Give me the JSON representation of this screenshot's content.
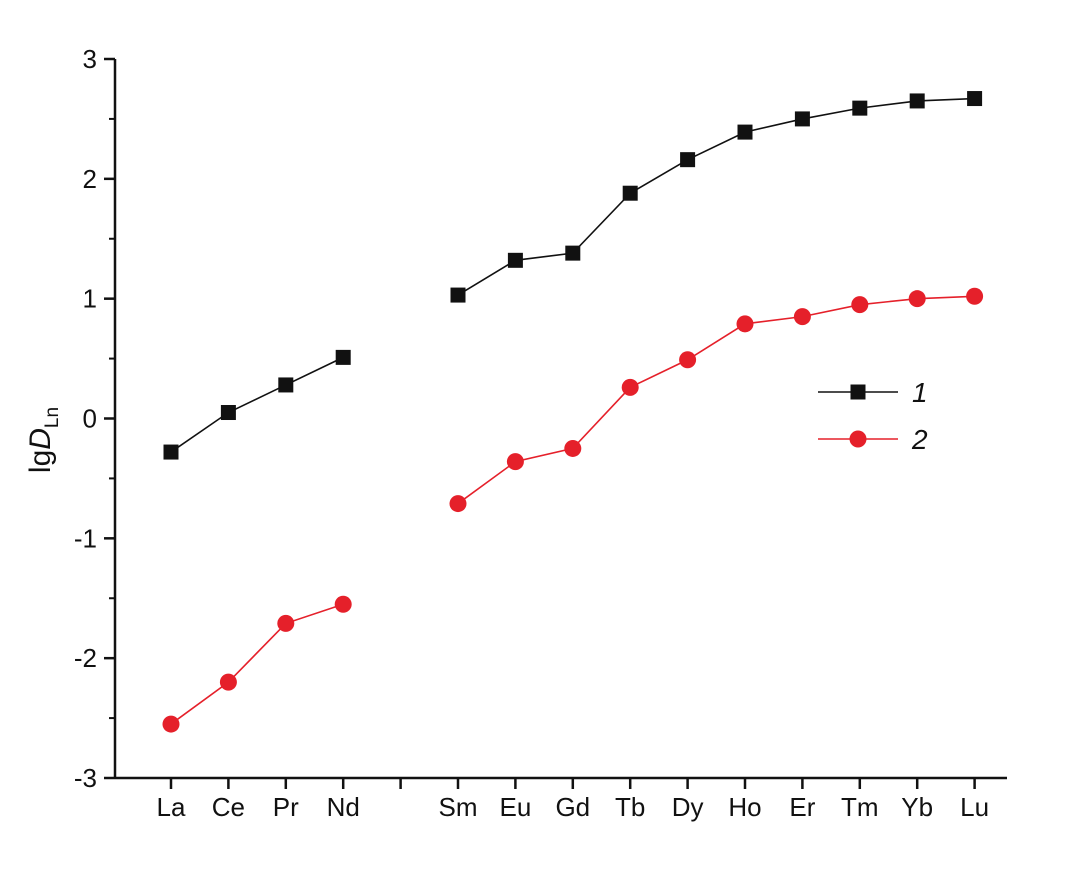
{
  "chart_data": {
    "type": "line",
    "x_categories": [
      "La",
      "Ce",
      "Pr",
      "Nd",
      "",
      "Sm",
      "Eu",
      "Gd",
      "Tb",
      "Dy",
      "Ho",
      "Er",
      "Tm",
      "Yb",
      "Lu"
    ],
    "ylabel": {
      "main": "lg",
      "italic": "D",
      "subscript": "Ln"
    },
    "ylim": [
      -3,
      3
    ],
    "yticks": [
      -3,
      -2,
      -1,
      0,
      1,
      2,
      3
    ],
    "grid": false,
    "legend_position": "right",
    "series": [
      {
        "name": "1",
        "marker": "square",
        "color": "#111111",
        "values": [
          -0.28,
          0.05,
          0.28,
          0.51,
          null,
          1.03,
          1.32,
          1.38,
          1.88,
          2.16,
          2.39,
          2.5,
          2.59,
          2.65,
          2.67
        ]
      },
      {
        "name": "2",
        "marker": "circle",
        "color": "#e5202a",
        "values": [
          -2.55,
          -2.2,
          -1.71,
          -1.55,
          null,
          -0.71,
          -0.36,
          -0.25,
          0.26,
          0.49,
          0.79,
          0.85,
          0.95,
          1.0,
          1.02
        ]
      }
    ]
  }
}
